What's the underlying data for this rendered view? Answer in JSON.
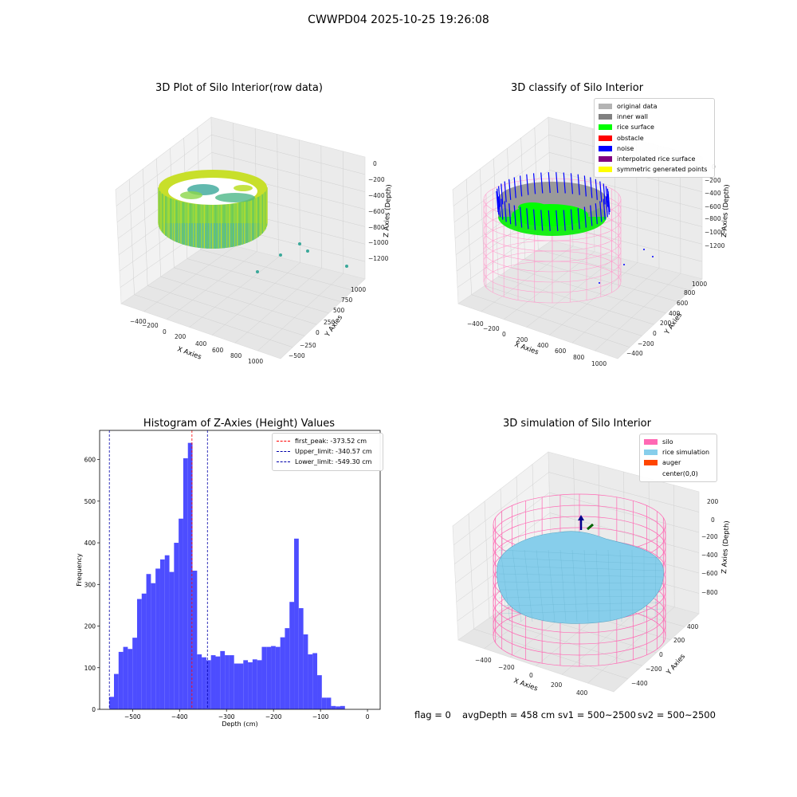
{
  "suptitle": "CWWPD04 2025-10-25 19:26:08",
  "colors": {
    "hist_bar": "#4d4dff",
    "peak_line": "#ff0000",
    "limit_line": "#0000aa",
    "silo": "#ff69b4",
    "rice_sim": "#87ceeb",
    "auger": "#ff4500",
    "original": "#b3b3b3",
    "inner_wall": "#808080",
    "rice_surface": "#00ff00",
    "obstacle": "#ff0000",
    "noise": "#0000ff",
    "interp": "#800080",
    "symmetric": "#ffff00"
  },
  "chart_data": [
    {
      "type": "scatter3d",
      "title": "3D Plot of Silo Interior(row data)",
      "xlabel": "X Axies",
      "ylabel": "Y Axies",
      "zlabel": "Z Axies (Depth)",
      "xticks": [
        "−400",
        "−200",
        "0",
        "200",
        "400",
        "600",
        "800",
        "1000"
      ],
      "yticks": [
        "−500",
        "−250",
        "0",
        "250",
        "500",
        "750",
        "1000"
      ],
      "zticks": [
        "0",
        "−200",
        "−400",
        "−600",
        "−800",
        "−1000",
        "−1200"
      ],
      "outliers": [
        {
          "x": 700,
          "y": 300,
          "z": -950
        },
        {
          "x": 850,
          "y": 400,
          "z": -1000
        },
        {
          "x": 800,
          "y": 550,
          "z": -1050
        },
        {
          "x": 900,
          "y": 700,
          "z": -1100
        },
        {
          "x": 600,
          "y": 100,
          "z": -1150
        }
      ]
    },
    {
      "type": "scatter3d",
      "title": "3D classify of Silo Interior",
      "xlabel": "X Axies",
      "ylabel": "Y Axies",
      "zlabel": "Z Axies (Depth)",
      "xticks": [
        "−400",
        "−200",
        "0",
        "200",
        "400",
        "600",
        "800",
        "1000"
      ],
      "yticks": [
        "−400",
        "−200",
        "0",
        "200",
        "400",
        "600",
        "800",
        "1000"
      ],
      "zticks": [
        "0",
        "−200",
        "−400",
        "−600",
        "−800",
        "−1000",
        "−1200"
      ],
      "legend": [
        {
          "label": "original data",
          "color": "#b3b3b3"
        },
        {
          "label": "inner wall",
          "color": "#808080"
        },
        {
          "label": "rice surface",
          "color": "#00ff00"
        },
        {
          "label": "obstacle",
          "color": "#ff0000"
        },
        {
          "label": "noise",
          "color": "#0000ff"
        },
        {
          "label": "interpolated rice surface",
          "color": "#800080"
        },
        {
          "label": "symmetric generated points",
          "color": "#ffff00"
        }
      ]
    },
    {
      "type": "bar",
      "title": "Histogram of Z-Axies (Height) Values",
      "xlabel": "Depth (cm)",
      "ylabel": "Frequency",
      "xlim": [
        -570,
        27
      ],
      "ylim": [
        0,
        670
      ],
      "xticks": [
        -500,
        -400,
        -300,
        -200,
        -100,
        0
      ],
      "yticks": [
        0,
        100,
        200,
        300,
        400,
        500,
        600
      ],
      "bin_start": -549.3,
      "bin_width": 9.83,
      "values": [
        30,
        85,
        138,
        150,
        145,
        172,
        265,
        278,
        325,
        303,
        338,
        360,
        370,
        330,
        400,
        458,
        603,
        640,
        333,
        132,
        125,
        118,
        130,
        127,
        140,
        130,
        130,
        110,
        110,
        118,
        113,
        120,
        118,
        150,
        150,
        152,
        150,
        173,
        195,
        258,
        410,
        243,
        180,
        132,
        135,
        82,
        28,
        28,
        8,
        7,
        8
      ],
      "lines": [
        {
          "label": "first_peak: -373.52 cm",
          "x": -373.52,
          "color": "#ff0000"
        },
        {
          "label": "Upper_limit: -340.57 cm",
          "x": -340.57,
          "color": "#0000aa"
        },
        {
          "label": "Lower_limit: -549.30 cm",
          "x": -549.3,
          "color": "#0000aa"
        }
      ]
    },
    {
      "type": "surface3d",
      "title": "3D simulation of Silo Interior",
      "xlabel": "X Axies",
      "ylabel": "Y Axies",
      "zlabel": "Z Axies (Depth)",
      "xticks": [
        "−400",
        "−200",
        "0",
        "200",
        "400"
      ],
      "yticks": [
        "−400",
        "−200",
        "0",
        "200",
        "400"
      ],
      "zticks": [
        "200",
        "0",
        "−200",
        "−400",
        "−600",
        "−800"
      ],
      "legend": [
        {
          "label": "silo",
          "color": "#ff69b4"
        },
        {
          "label": "rice simulation",
          "color": "#87ceeb"
        },
        {
          "label": "auger",
          "color": "#ff4500"
        },
        {
          "label": "center(0,0)",
          "color": "#ffffff"
        }
      ]
    }
  ],
  "footer": {
    "flag": "flag = 0",
    "avg": "avgDepth = 458 cm",
    "sv1": "sv1 = 500~2500",
    "sv2": "sv2 = 500~2500"
  }
}
